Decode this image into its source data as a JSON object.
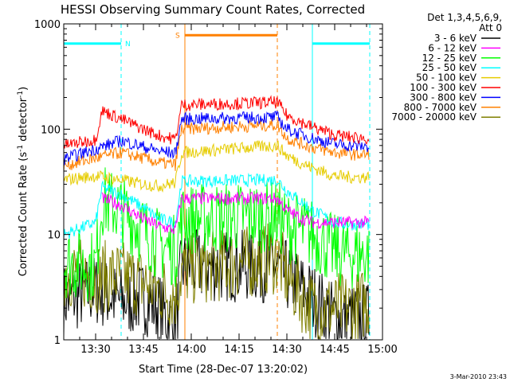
{
  "chart_data": {
    "type": "line",
    "title": "HESSI Observing Summary Count Rates, Corrected",
    "xlabel": "Start Time (28-Dec-07 13:20:02)",
    "ylabel": "Corrected Count Rate (s",
    "ylabel_sup": "-1",
    "ylabel_mid": " detector",
    "ylabel_sup2": "-1",
    "ylabel_end": ")",
    "xlim": [
      "13:20",
      "15:00"
    ],
    "xaxis_ticks": [
      "13:30",
      "13:45",
      "14:00",
      "14:15",
      "14:30",
      "14:45",
      "15:00"
    ],
    "ylim": [
      1,
      1000
    ],
    "yscale": "log",
    "yaxis_ticks": [
      "1",
      "10",
      "100",
      "1000"
    ],
    "legend_header": [
      "Det 1,3,4,5,6,9,",
      "Att 0"
    ],
    "legend_position": "right",
    "footer_date": "3-Mar-2010 23:43",
    "night_label": "N",
    "saa_label": "S",
    "intervals": {
      "night1": {
        "start": "13:20",
        "end": "13:38"
      },
      "saa": {
        "start": "13:58",
        "end": "14:27"
      },
      "night2": {
        "start": "14:38",
        "end": "14:56"
      }
    },
    "series": [
      {
        "name": "3 - 6 keV",
        "color": "#000000",
        "x": [
          "13:20",
          "13:30",
          "13:38",
          "13:45",
          "13:50",
          "13:55",
          "13:57",
          "14:27",
          "14:30",
          "14:35",
          "14:38",
          "14:45",
          "14:50",
          "14:56"
        ],
        "values": [
          2.4,
          3.0,
          2.3,
          2.5,
          2.0,
          1.3,
          5.0,
          5.0,
          4.0,
          3.0,
          2.5,
          1.6,
          1.6,
          1.6
        ]
      },
      {
        "name": "6 - 12 keV",
        "color": "#ff00ff",
        "x": [
          "13:32",
          "13:38",
          "13:45",
          "13:50",
          "13:55",
          "13:57",
          "14:27",
          "14:30",
          "14:35",
          "14:38",
          "14:45",
          "14:50",
          "14:56"
        ],
        "values": [
          22,
          19,
          14,
          12,
          11,
          22,
          22,
          17,
          14,
          13,
          13,
          13,
          13
        ]
      },
      {
        "name": "12 - 25 keV",
        "color": "#00ff00",
        "x": [
          "13:20",
          "13:30",
          "13:32",
          "13:38",
          "13:45",
          "13:50",
          "13:55",
          "13:57",
          "14:27",
          "14:30",
          "14:35",
          "14:38",
          "14:45",
          "14:50",
          "14:56"
        ],
        "values": [
          5.5,
          5.0,
          21,
          17,
          11,
          8,
          7,
          14,
          15,
          12,
          11,
          10,
          7,
          6.5,
          6.5
        ]
      },
      {
        "name": "25 - 50 keV",
        "color": "#00ffff",
        "x": [
          "13:20",
          "13:30",
          "13:32",
          "13:38",
          "13:45",
          "13:50",
          "13:55",
          "13:57",
          "14:27",
          "14:30",
          "14:35",
          "14:38",
          "14:45",
          "14:50",
          "14:56"
        ],
        "values": [
          10,
          13,
          28,
          24,
          18,
          14,
          13,
          32,
          33,
          26,
          20,
          17,
          13,
          12.5,
          12.5
        ]
      },
      {
        "name": "50 - 100 keV",
        "color": "#e6cc00",
        "x": [
          "13:20",
          "13:30",
          "13:38",
          "13:45",
          "13:50",
          "13:55",
          "13:57",
          "14:27",
          "14:30",
          "14:35",
          "14:38",
          "14:45",
          "14:50",
          "14:56"
        ],
        "values": [
          33,
          36,
          33,
          30,
          29,
          31,
          60,
          70,
          56,
          47,
          43,
          36,
          35,
          35
        ]
      },
      {
        "name": "100 - 300 keV",
        "color": "#ff0000",
        "x": [
          "13:20",
          "13:30",
          "13:32",
          "13:38",
          "13:45",
          "13:50",
          "13:55",
          "13:57",
          "14:27",
          "14:30",
          "14:35",
          "14:38",
          "14:45",
          "14:50",
          "14:56"
        ],
        "values": [
          70,
          80,
          150,
          125,
          100,
          87,
          80,
          170,
          180,
          135,
          115,
          105,
          88,
          84,
          82
        ]
      },
      {
        "name": "300 - 800 keV",
        "color": "#0000ff",
        "x": [
          "13:20",
          "13:30",
          "13:38",
          "13:45",
          "13:50",
          "13:55",
          "13:57",
          "14:27",
          "14:30",
          "14:35",
          "14:38",
          "14:45",
          "14:50",
          "14:56"
        ],
        "values": [
          52,
          65,
          78,
          68,
          62,
          59,
          125,
          130,
          100,
          88,
          82,
          72,
          70,
          68
        ]
      },
      {
        "name": "800 - 7000 keV",
        "color": "#ff8000",
        "x": [
          "13:20",
          "13:30",
          "13:38",
          "13:45",
          "13:50",
          "13:55",
          "13:57",
          "14:27",
          "14:30",
          "14:35",
          "14:38",
          "14:45",
          "14:50",
          "14:56"
        ],
        "values": [
          45,
          53,
          60,
          53,
          48,
          46,
          100,
          110,
          82,
          72,
          67,
          60,
          58,
          57
        ]
      },
      {
        "name": "7000 - 20000 keV",
        "color": "#808000",
        "x": [
          "13:20",
          "13:30",
          "13:38",
          "13:45",
          "13:50",
          "13:55",
          "13:57",
          "14:27",
          "14:30",
          "14:35",
          "14:38",
          "14:45",
          "14:50",
          "14:56"
        ],
        "values": [
          4.5,
          4.0,
          4.0,
          3.5,
          3.0,
          2.7,
          4.5,
          6.0,
          4.0,
          2.5,
          2.0,
          2.0,
          2.0,
          2.3
        ]
      }
    ]
  }
}
